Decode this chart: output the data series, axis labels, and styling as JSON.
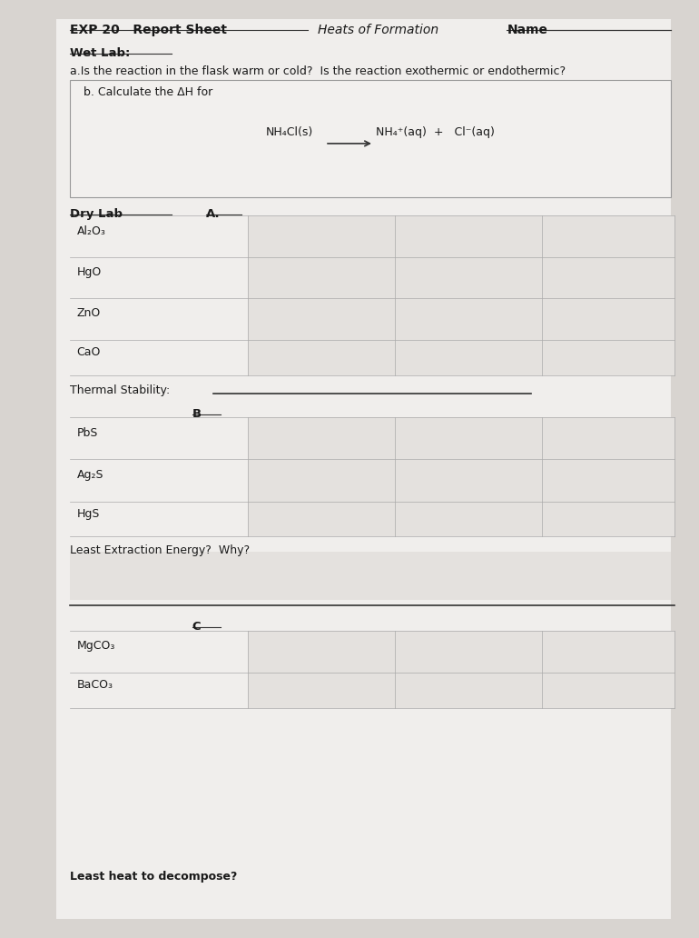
{
  "background_color": "#d8d4d0",
  "paper_color": "#f0eeec",
  "header_line1_left": "EXP 20   Report Sheet",
  "header_line1_center": "Heats of Formation",
  "header_line1_right": "Name",
  "wet_lab_label": "Wet Lab:",
  "question_a": "a.Is the reaction in the flask warm or cold?  Is the reaction exothermic or endothermic?",
  "question_b_label": "b. Calculate the ΔH for",
  "dry_lab_label": "Dry Lab",
  "section_A_label": "A.",
  "section_B_label": "B",
  "section_C_label": "C",
  "compounds_A": [
    "Al₂O₃",
    "HgO",
    "ZnO",
    "CaO"
  ],
  "thermal_stability_label": "Thermal Stability:",
  "compounds_B": [
    "PbS",
    "Ag₂S",
    "HgS"
  ],
  "least_extraction_label": "Least Extraction Energy?  Why?",
  "compounds_C": [
    "MgCO₃",
    "BaCO₃"
  ],
  "least_heat_label": "Least heat to decompose?",
  "text_color": "#1a1a1a",
  "line_color": "#333333"
}
